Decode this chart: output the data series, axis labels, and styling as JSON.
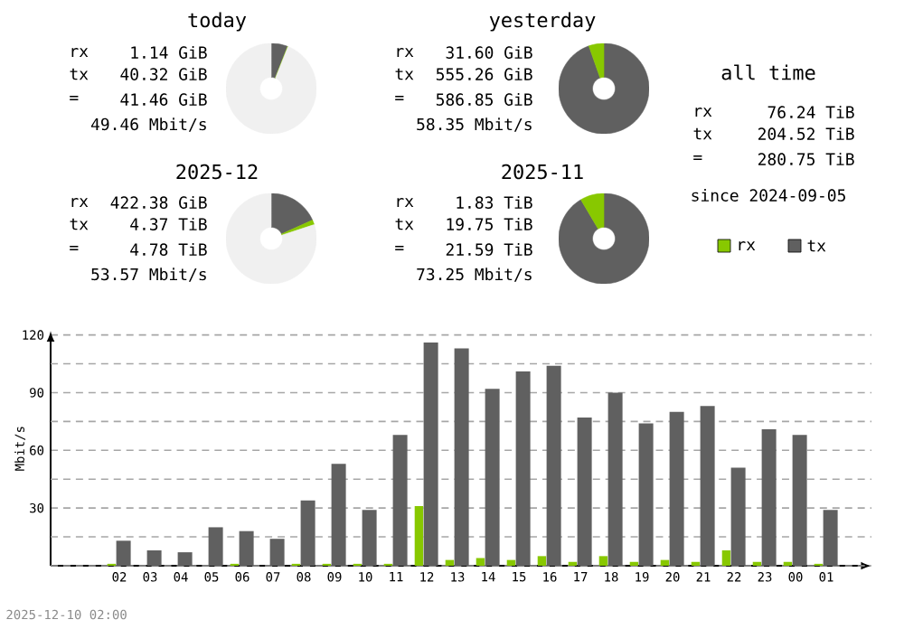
{
  "chart_data": [
    {
      "type": "donut",
      "title": "today",
      "categories": [
        null,
        null,
        null
      ],
      "values": [
        5.9,
        0.17,
        93.93
      ],
      "colors": [
        "#606060",
        "#88c800",
        "#f0f0f0"
      ],
      "annotations": [
        "rx",
        "1.14 GiB",
        "tx",
        "40.32 GiB",
        "=",
        "41.46 GiB",
        "49.46 Mbit/s"
      ]
    },
    {
      "type": "donut",
      "title": "yesterday",
      "categories": [
        null,
        null
      ],
      "values": [
        94.6,
        5.4
      ],
      "colors": [
        "#606060",
        "#88c800"
      ],
      "annotations": [
        "rx",
        "31.60 GiB",
        "tx",
        "555.26 GiB",
        "=",
        "586.85 GiB",
        "58.35 Mbit/s"
      ]
    },
    {
      "type": "other",
      "title": "all time",
      "annotations": [
        "rx",
        "76.24 TiB",
        "tx",
        "204.52 TiB",
        "=",
        "280.75 TiB",
        "since 2024-09-05"
      ],
      "series": [
        {
          "name": "rx",
          "color": "#88c800"
        },
        {
          "name": "tx",
          "color": "#606060"
        }
      ],
      "legend": "bottom"
    },
    {
      "type": "donut",
      "title": "2025-12",
      "categories": [
        null,
        null,
        null
      ],
      "values": [
        18.3,
        1.7,
        80.0
      ],
      "colors": [
        "#606060",
        "#88c800",
        "#f0f0f0"
      ],
      "annotations": [
        "rx",
        "422.38 GiB",
        "tx",
        "4.37 TiB",
        "=",
        "4.78 TiB",
        "53.57 Mbit/s"
      ]
    },
    {
      "type": "donut",
      "title": "2025-11",
      "categories": [
        null,
        null
      ],
      "values": [
        91.5,
        8.5
      ],
      "colors": [
        "#606060",
        "#88c800"
      ],
      "annotations": [
        "rx",
        "1.83 TiB",
        "tx",
        "19.75 TiB",
        "=",
        "21.59 TiB",
        "73.25 Mbit/s"
      ]
    },
    {
      "type": "bar",
      "ylabel": "Mbit/s",
      "annotations": [
        "2025-12-10 02:00"
      ],
      "categories": [
        "02",
        "03",
        "04",
        "05",
        "06",
        "07",
        "08",
        "09",
        "10",
        "11",
        "12",
        "13",
        "14",
        "15",
        "16",
        "17",
        "18",
        "19",
        "20",
        "21",
        "22",
        "23",
        "00",
        "01"
      ],
      "series": [
        {
          "color": "#88c800",
          "values": [
            1,
            0,
            0,
            0,
            1,
            0,
            1,
            1,
            1,
            1,
            31,
            3,
            4,
            3,
            5,
            2,
            5,
            2,
            3,
            2,
            8,
            2,
            2,
            1
          ]
        },
        {
          "color": "#606060",
          "values": [
            13,
            8,
            7,
            20,
            18,
            14,
            34,
            53,
            29,
            68,
            116,
            113,
            92,
            101,
            104,
            77,
            90,
            74,
            80,
            83,
            51,
            71,
            68,
            29
          ]
        }
      ],
      "ylim": [
        0,
        122
      ],
      "yticks": [
        {
          "value": 0,
          "label": null
        },
        {
          "value": 15,
          "label": null
        },
        30,
        {
          "value": 45,
          "label": null
        },
        60,
        {
          "value": 75,
          "label": null
        },
        90,
        {
          "value": 105,
          "label": null
        },
        120
      ],
      "grid": "y"
    }
  ]
}
